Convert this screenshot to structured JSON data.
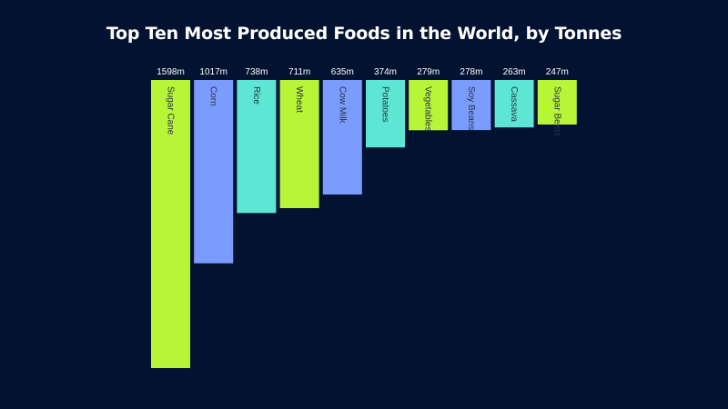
{
  "chart_data": {
    "type": "bar",
    "title": "Top Ten Most Produced Foods in the World, by Tonnes",
    "xlabel": "",
    "ylabel": "",
    "unit_suffix": "m",
    "categories": [
      "Sugar Cane",
      "Corn",
      "Rice",
      "Wheat",
      "Cow Milk",
      "Potatoes",
      "Vegetables",
      "Soy Beans",
      "Cassava",
      "Sugar Beets"
    ],
    "values": [
      1598,
      1017,
      738,
      711,
      635,
      374,
      279,
      278,
      263,
      247
    ],
    "value_labels": [
      "1598m",
      "1017m",
      "738m",
      "711m",
      "635m",
      "374m",
      "279m",
      "278m",
      "263m",
      "247m"
    ],
    "colors": [
      "#b8f536",
      "#7b9cff",
      "#5ce6d3",
      "#b8f536",
      "#7b9cff",
      "#5ce6d3",
      "#b8f536",
      "#7b9cff",
      "#5ce6d3",
      "#b8f536"
    ],
    "ylim": [
      0,
      1598
    ],
    "orientation": "downward",
    "grid": false,
    "legend": "none"
  },
  "theme": {
    "background": "#021230",
    "title_color": "#ffffff",
    "value_label_color": "#ffffff",
    "category_label_color": "#2a3347"
  }
}
